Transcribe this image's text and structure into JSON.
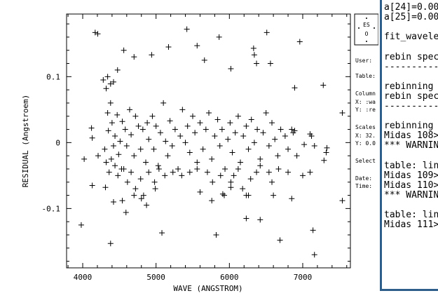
{
  "plot": {
    "ylabel": "RESIDUAL (Angstroem)",
    "xlabel": "WAVE (ANGSTROM)",
    "x_ticks": [
      "4000",
      "5000",
      "6000",
      "7000"
    ],
    "y_ticks": [
      "0.1",
      "0",
      "-0.1"
    ],
    "logo": "ES\nO",
    "side_labels": {
      "user": "User:",
      "table": "Table:",
      "columns": "Column",
      "col_x": "X: :wa",
      "col_y": "Y: :re",
      "scales": "Scales",
      "scale_x": "X: 32.",
      "scale_y": "Y: 0.0",
      "select": "Select",
      "date": "Date:",
      "time": "Time:"
    }
  },
  "terminal": {
    "lines": [
      "a[24]=0.00",
      "a[25]=0.00",
      "",
      "fit_wavele",
      "",
      "rebin spec",
      "----------",
      "",
      "rebinning",
      "rebin spec",
      "----------",
      "",
      "rebinning",
      "Midas 108>",
      "*** WARNIN",
      "",
      "table: lin",
      "Midas 109>",
      "Midas 110>",
      "*** WARNIN",
      "",
      "table: lin",
      "Midas 111>"
    ]
  },
  "chart_data": {
    "type": "scatter",
    "title": "",
    "xlabel": "WAVE (ANGSTROM)",
    "ylabel": "RESIDUAL (Angstroem)",
    "xlim": [
      3780,
      7650
    ],
    "ylim": [
      -0.19,
      0.195
    ],
    "x_ticks": [
      4000,
      5000,
      6000,
      7000
    ],
    "y_ticks": [
      0.1,
      0,
      -0.1
    ],
    "marker": "plus",
    "grid": false,
    "points": [
      [
        4170,
        0.167
      ],
      [
        4205,
        0.165
      ],
      [
        4280,
        0.095
      ],
      [
        4340,
        0.1
      ],
      [
        4320,
        0.082
      ],
      [
        4380,
        0.089
      ],
      [
        4420,
        0.092
      ],
      [
        4475,
        0.11
      ],
      [
        4560,
        0.14
      ],
      [
        4700,
        0.13
      ],
      [
        4940,
        0.133
      ],
      [
        5170,
        0.145
      ],
      [
        5420,
        0.172
      ],
      [
        5560,
        0.147
      ],
      [
        5660,
        0.125
      ],
      [
        5860,
        0.16
      ],
      [
        6020,
        0.112
      ],
      [
        6330,
        0.143
      ],
      [
        6340,
        0.133
      ],
      [
        6370,
        0.12
      ],
      [
        6510,
        0.167
      ],
      [
        6560,
        0.12
      ],
      [
        6890,
        0.083
      ],
      [
        6960,
        0.153
      ],
      [
        7280,
        0.087
      ],
      [
        4020,
        -0.025
      ],
      [
        4120,
        0.022
      ],
      [
        4130,
        0.007
      ],
      [
        4210,
        -0.02
      ],
      [
        4300,
        -0.01
      ],
      [
        4340,
        0.045
      ],
      [
        4350,
        0.018
      ],
      [
        4380,
        0.06
      ],
      [
        4400,
        0.03
      ],
      [
        4420,
        -0.005
      ],
      [
        4440,
        0.01
      ],
      [
        4470,
        0.042
      ],
      [
        4490,
        -0.018
      ],
      [
        4510,
        0.002
      ],
      [
        4540,
        0.032
      ],
      [
        4560,
        -0.04
      ],
      [
        4580,
        0.02
      ],
      [
        4600,
        -0.005
      ],
      [
        4640,
        0.05
      ],
      [
        4660,
        0.012
      ],
      [
        4700,
        -0.02
      ],
      [
        4720,
        0.04
      ],
      [
        4760,
        0.025
      ],
      [
        4790,
        -0.01
      ],
      [
        4820,
        0.02
      ],
      [
        4860,
        -0.03
      ],
      [
        4880,
        0.03
      ],
      [
        4900,
        0.005
      ],
      [
        4950,
        0.04
      ],
      [
        4970,
        -0.01
      ],
      [
        5000,
        0.025
      ],
      [
        5030,
        -0.035
      ],
      [
        5060,
        0.015
      ],
      [
        5100,
        0.06
      ],
      [
        5130,
        0.002
      ],
      [
        5160,
        -0.02
      ],
      [
        5190,
        0.033
      ],
      [
        5220,
        -0.005
      ],
      [
        5260,
        0.02
      ],
      [
        5300,
        -0.04
      ],
      [
        5330,
        0.01
      ],
      [
        5360,
        0.05
      ],
      [
        5400,
        0.0
      ],
      [
        5430,
        0.025
      ],
      [
        5460,
        -0.015
      ],
      [
        5500,
        0.04
      ],
      [
        5530,
        0.015
      ],
      [
        5560,
        -0.03
      ],
      [
        5600,
        0.03
      ],
      [
        5640,
        -0.01
      ],
      [
        5680,
        0.02
      ],
      [
        5720,
        0.045
      ],
      [
        5760,
        -0.025
      ],
      [
        5800,
        0.01
      ],
      [
        5840,
        0.035
      ],
      [
        5870,
        -0.005
      ],
      [
        5900,
        0.02
      ],
      [
        5940,
        -0.04
      ],
      [
        5980,
        0.005
      ],
      [
        6010,
        0.03
      ],
      [
        6040,
        -0.015
      ],
      [
        6080,
        0.015
      ],
      [
        6120,
        0.04
      ],
      [
        6150,
        -0.03
      ],
      [
        6190,
        0.01
      ],
      [
        6230,
        0.025
      ],
      [
        6260,
        -0.01
      ],
      [
        6300,
        0.035
      ],
      [
        6340,
        0.0
      ],
      [
        6380,
        0.02
      ],
      [
        6420,
        -0.025
      ],
      [
        6460,
        0.015
      ],
      [
        6500,
        0.045
      ],
      [
        6540,
        -0.005
      ],
      [
        6580,
        0.03
      ],
      [
        6620,
        0.005
      ],
      [
        6660,
        -0.02
      ],
      [
        6700,
        0.02
      ],
      [
        6760,
        0.01
      ],
      [
        6800,
        -0.01
      ],
      [
        6850,
        0.02
      ],
      [
        6870,
        0.015
      ],
      [
        6890,
        0.018
      ],
      [
        6920,
        -0.02
      ],
      [
        7020,
        -0.003
      ],
      [
        7100,
        0.013
      ],
      [
        7120,
        0.01
      ],
      [
        7160,
        -0.005
      ],
      [
        7290,
        -0.027
      ],
      [
        7320,
        -0.015
      ],
      [
        7330,
        -0.008
      ],
      [
        7540,
        0.045
      ],
      [
        4320,
        -0.03
      ],
      [
        4360,
        -0.045
      ],
      [
        4390,
        -0.025
      ],
      [
        4440,
        -0.035
      ],
      [
        4480,
        -0.05
      ],
      [
        4530,
        -0.04
      ],
      [
        4610,
        -0.06
      ],
      [
        4660,
        -0.045
      ],
      [
        4720,
        -0.07
      ],
      [
        4790,
        -0.055
      ],
      [
        4830,
        -0.08
      ],
      [
        4900,
        -0.045
      ],
      [
        4980,
        -0.06
      ],
      [
        5040,
        -0.04
      ],
      [
        5120,
        -0.05
      ],
      [
        5230,
        -0.045
      ],
      [
        5350,
        -0.05
      ],
      [
        5460,
        -0.045
      ],
      [
        5560,
        -0.04
      ],
      [
        5700,
        -0.045
      ],
      [
        5770,
        -0.06
      ],
      [
        5880,
        -0.05
      ],
      [
        5930,
        -0.08
      ],
      [
        6020,
        -0.06
      ],
      [
        6060,
        -0.05
      ],
      [
        6120,
        -0.04
      ],
      [
        6180,
        -0.07
      ],
      [
        6230,
        -0.08
      ],
      [
        6290,
        -0.055
      ],
      [
        6370,
        -0.045
      ],
      [
        6420,
        -0.035
      ],
      [
        6540,
        -0.045
      ],
      [
        6580,
        -0.06
      ],
      [
        6670,
        -0.04
      ],
      [
        6800,
        -0.045
      ],
      [
        7000,
        -0.05
      ],
      [
        7100,
        -0.045
      ],
      [
        4130,
        -0.065
      ],
      [
        4310,
        -0.068
      ],
      [
        4420,
        -0.09
      ],
      [
        4540,
        -0.088
      ],
      [
        4700,
        -0.08
      ],
      [
        4800,
        -0.085
      ],
      [
        4870,
        -0.095
      ],
      [
        4990,
        -0.07
      ],
      [
        5600,
        -0.075
      ],
      [
        5760,
        -0.088
      ],
      [
        5910,
        -0.078
      ],
      [
        6020,
        -0.068
      ],
      [
        6260,
        -0.08
      ],
      [
        6600,
        -0.08
      ],
      [
        6850,
        -0.085
      ],
      [
        7540,
        -0.088
      ],
      [
        3980,
        -0.125
      ],
      [
        4380,
        -0.153
      ],
      [
        4590,
        -0.106
      ],
      [
        5080,
        -0.137
      ],
      [
        5820,
        -0.14
      ],
      [
        6230,
        -0.115
      ],
      [
        6420,
        -0.117
      ],
      [
        6690,
        -0.148
      ],
      [
        7140,
        -0.133
      ],
      [
        7160,
        -0.17
      ]
    ]
  }
}
